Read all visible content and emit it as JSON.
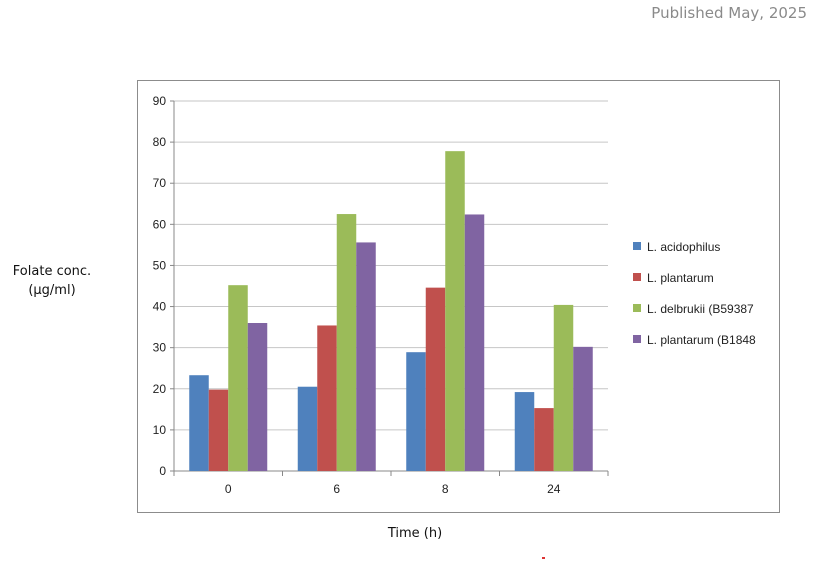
{
  "published": "Published May, 2025",
  "colors": {
    "s1": "#4f81bd",
    "s2": "#c0504d",
    "s3": "#9bbb59",
    "s4": "#8064a2",
    "grid": "#c6c6c6"
  },
  "chart_data": {
    "type": "bar",
    "ylabel": "Folate conc. (µg/ml)",
    "ylabel_line1": "Folate conc.",
    "ylabel_line2": "(µg/ml)",
    "xlabel": "Time (h)",
    "categories": [
      "0",
      "6",
      "8",
      "24"
    ],
    "ylim": [
      0,
      90
    ],
    "yticks": [
      "0",
      "10",
      "20",
      "30",
      "40",
      "50",
      "60",
      "70",
      "80",
      "90"
    ],
    "grid": true,
    "legend_position": "right",
    "series": [
      {
        "name": "L. acidophilus",
        "values": [
          23.3,
          20.5,
          28.9,
          19.2
        ]
      },
      {
        "name": "L. plantarum",
        "values": [
          19.8,
          35.4,
          44.6,
          15.3
        ]
      },
      {
        "name": "L. delbrukii (B59387",
        "values": [
          45.2,
          62.5,
          77.8,
          40.4
        ]
      },
      {
        "name": "L. plantarum (B1848",
        "values": [
          36.0,
          55.6,
          62.4,
          30.2
        ]
      }
    ]
  }
}
